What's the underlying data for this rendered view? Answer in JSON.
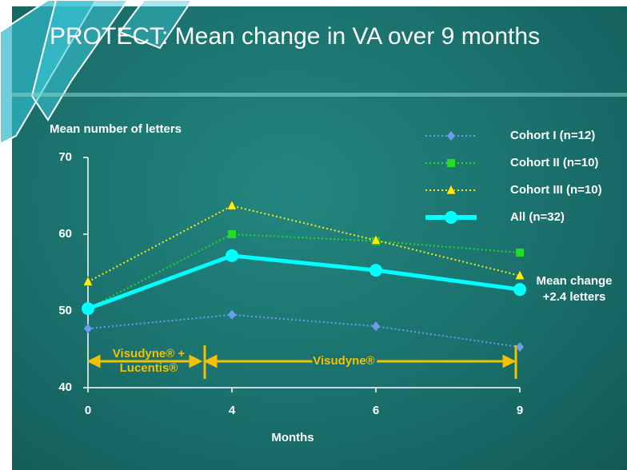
{
  "chart_data": {
    "type": "line",
    "title": "PROTECT: Mean change in VA over 9 months",
    "y_label": "Mean number of letters",
    "x_label": "Months",
    "categories": [
      "0",
      "4",
      "6",
      "9"
    ],
    "ylim": [
      40,
      70
    ],
    "yticks": [
      40,
      50,
      60,
      70
    ],
    "series": [
      {
        "name": "Cohort I (n=12)",
        "color": "#6f9cf0",
        "line_style": "dotted",
        "marker": "diamond",
        "values": [
          47.7,
          49.5,
          48.0,
          45.3
        ]
      },
      {
        "name": "Cohort II (n=10)",
        "color": "#22dd22",
        "line_style": "dotted",
        "marker": "square",
        "values": [
          50.3,
          60.0,
          59.1,
          57.6
        ]
      },
      {
        "name": "Cohort III (n=10)",
        "color": "#f5ee10",
        "line_style": "dotted",
        "marker": "triangle",
        "values": [
          53.8,
          63.7,
          59.2,
          54.6
        ]
      },
      {
        "name": "All (n=32)",
        "color": "#00ffff",
        "line_style": "solid",
        "marker": "circle",
        "values": [
          50.3,
          57.2,
          55.3,
          52.8
        ]
      }
    ],
    "annotations": {
      "mean_change": [
        "Mean change",
        "+2.4 letters"
      ],
      "period_1": [
        "Visudyne® +",
        "Lucentis®"
      ],
      "period_2": "Visudyne®"
    }
  }
}
